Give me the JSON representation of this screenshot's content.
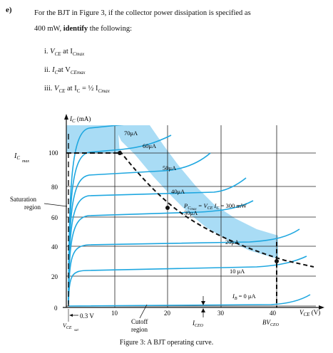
{
  "question": {
    "label": "e)",
    "line1": "For the BJT in Figure 3, if the collector power dissipation is specified as",
    "line2_prefix": "400 mW,",
    "line2_bold": "identify",
    "line2_suffix": "the following:"
  },
  "items": [
    {
      "num": "i.",
      "text": "V",
      "sub": "CE",
      "mid": " at I",
      "sub2": "Cmax",
      "tail": ""
    },
    {
      "num": "ii.",
      "text": "I",
      "sub": "C",
      "mid": "at V",
      "sub2": "CEmax",
      "tail": ""
    },
    {
      "num": "iii.",
      "text": "V",
      "sub": "CE",
      "mid": " at I",
      "sub2": "C",
      "tail": " = ½ I"
    }
  ],
  "item3_last_sub": "Cmax",
  "caption": "Figure 3:  A BJT operating curve.",
  "graph": {
    "y_axis_label": "I",
    "y_axis_sub": "C",
    "y_axis_unit": " (mA)",
    "x_axis_label": "V",
    "x_axis_sub": "CE",
    "x_axis_unit": " (V)",
    "y_ticks": [
      "0",
      "20",
      "40",
      "60",
      "80",
      "100"
    ],
    "x_ticks": [
      "10",
      "20",
      "30",
      "40"
    ],
    "icmax_label": "I",
    "icmax_sub": "C",
    "icmax_sub2": "max",
    "saturation_label_1": "Saturation",
    "saturation_label_2": "region",
    "cutoff_label_1": "Cutoff",
    "cutoff_label_2": "region",
    "vcesat_label": "V",
    "vcesat_sub": "CE",
    "vcesat_sub2": "sat",
    "point3v_label": "0.3 V",
    "iceo_label": "I",
    "iceo_sub": "CEO",
    "bvceo_label": "BV",
    "bvceo_sub": "CEO",
    "pcmax_label": "P",
    "pcmax_sub": "C",
    "pcmax_sub2": "max",
    "pcmax_eq": " = V",
    "pcmax_eq_sub": "CE",
    "pcmax_eq_tail": " I",
    "pcmax_eq_sub2": "C",
    "pcmax_value": " = 300 mW",
    "curve_labels": [
      "70μA",
      "60μA",
      "50μA",
      "40μA",
      "30μA",
      "20μA",
      "10 μA",
      "I"
    ],
    "ib0_sub": "B",
    "ib0_tail": " = 0 μA",
    "curve_color": "#1ea7e0",
    "region_color": "#a9dcf5"
  }
}
